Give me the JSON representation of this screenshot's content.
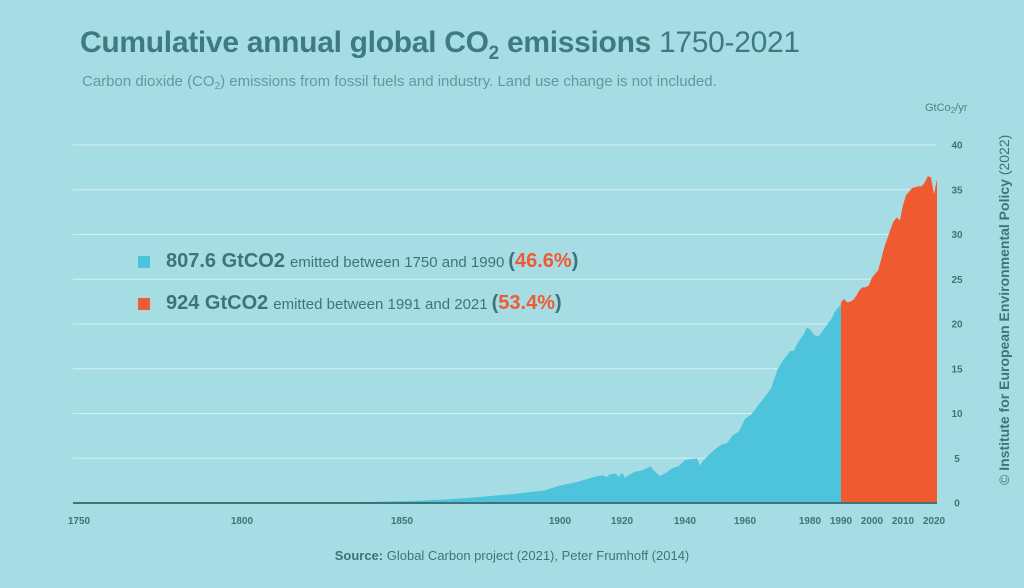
{
  "header": {
    "title_main": "Cumulative annual global CO",
    "title_sub": "2",
    "title_tail": " emissions",
    "title_years": " 1750-2021",
    "subtitle_a": "Carbon dioxide (CO",
    "subtitle_sub": "2",
    "subtitle_b": ") emissions from fossil fuels and industry. Land use change is not included."
  },
  "unit": {
    "a": "GtCo",
    "sub": "2",
    "b": "/yr"
  },
  "legend": [
    {
      "amount": "807.6 GtCO2",
      "text": "emitted between 1750 and 1990",
      "open": "(",
      "pct": "46.6%",
      "close": ")"
    },
    {
      "amount": "924 GtCO2",
      "text": "emitted between 1991 and 2021",
      "open": "(",
      "pct": "53.4%",
      "close": ")"
    }
  ],
  "credit": {
    "symbol": "© ",
    "name": "Institute for European Environmental Policy",
    "year": " (2022)"
  },
  "source": {
    "label": "Source:",
    "text": " Global Carbon project (2021), Peter Frumhoff (2014)"
  },
  "colors": {
    "background": "#a6dde4",
    "period1": "#4ec4dc",
    "period2": "#ef5a30",
    "text": "#3e7379",
    "grid": "#d4eff2"
  },
  "chart_data": {
    "type": "area",
    "x_ticks": [
      1750,
      1800,
      1850,
      1900,
      1920,
      1940,
      1960,
      1980,
      1990,
      2000,
      2010,
      2020
    ],
    "y_ticks": [
      0,
      5,
      10,
      15,
      20,
      25,
      30,
      35,
      40
    ],
    "xlim": [
      1750,
      2021
    ],
    "ylim": [
      0,
      40
    ],
    "ylabel": "GtCo2/yr",
    "grid": true,
    "split_year": 1990,
    "series": [
      {
        "name": "807.6 GtCO2 emitted between 1750 and 1990",
        "color": "#4ec4dc",
        "x": [
          1750,
          1760,
          1770,
          1780,
          1790,
          1800,
          1810,
          1820,
          1830,
          1840,
          1850,
          1855,
          1860,
          1865,
          1870,
          1875,
          1880,
          1885,
          1890,
          1895,
          1900,
          1905,
          1910,
          1912,
          1914,
          1915,
          1916,
          1918,
          1919,
          1920,
          1921,
          1922,
          1924,
          1926,
          1928,
          1929,
          1930,
          1932,
          1934,
          1936,
          1938,
          1940,
          1942,
          1944,
          1945,
          1946,
          1948,
          1950,
          1952,
          1954,
          1956,
          1958,
          1960,
          1962,
          1964,
          1966,
          1968,
          1970,
          1972,
          1974,
          1975,
          1976,
          1978,
          1979,
          1980,
          1981,
          1982,
          1983,
          1985,
          1987,
          1988,
          1989,
          1990
        ],
        "y": [
          0.01,
          0.01,
          0.02,
          0.02,
          0.03,
          0.04,
          0.05,
          0.06,
          0.08,
          0.12,
          0.2,
          0.25,
          0.33,
          0.42,
          0.55,
          0.68,
          0.85,
          1.0,
          1.2,
          1.4,
          1.95,
          2.3,
          2.8,
          3.0,
          3.1,
          2.9,
          3.2,
          3.3,
          2.9,
          3.4,
          2.8,
          3.1,
          3.5,
          3.6,
          3.9,
          4.1,
          3.7,
          3.0,
          3.4,
          3.9,
          4.1,
          4.8,
          4.9,
          5.0,
          4.2,
          4.7,
          5.4,
          6.0,
          6.5,
          6.7,
          7.6,
          8.0,
          9.4,
          9.9,
          10.9,
          11.8,
          12.8,
          14.9,
          16.1,
          17.0,
          17.0,
          17.8,
          18.8,
          19.6,
          19.4,
          18.9,
          18.6,
          18.7,
          19.7,
          20.6,
          21.4,
          21.8,
          22.2
        ]
      },
      {
        "name": "924 GtCO2 emitted between 1991 and 2021",
        "color": "#ef5a30",
        "x": [
          1990,
          1991,
          1992,
          1993,
          1994,
          1995,
          1996,
          1997,
          1998,
          1999,
          2000,
          2001,
          2002,
          2003,
          2004,
          2005,
          2006,
          2007,
          2008,
          2009,
          2010,
          2011,
          2012,
          2013,
          2014,
          2015,
          2016,
          2017,
          2018,
          2019,
          2020,
          2021
        ],
        "y": [
          22.4,
          22.8,
          22.4,
          22.5,
          22.7,
          23.2,
          23.8,
          24.1,
          24.1,
          24.3,
          25.2,
          25.6,
          26.0,
          27.3,
          28.6,
          29.6,
          30.6,
          31.5,
          31.9,
          31.6,
          33.3,
          34.4,
          34.8,
          35.2,
          35.3,
          35.4,
          35.4,
          35.8,
          36.5,
          36.4,
          34.5,
          36.2
        ]
      }
    ]
  }
}
